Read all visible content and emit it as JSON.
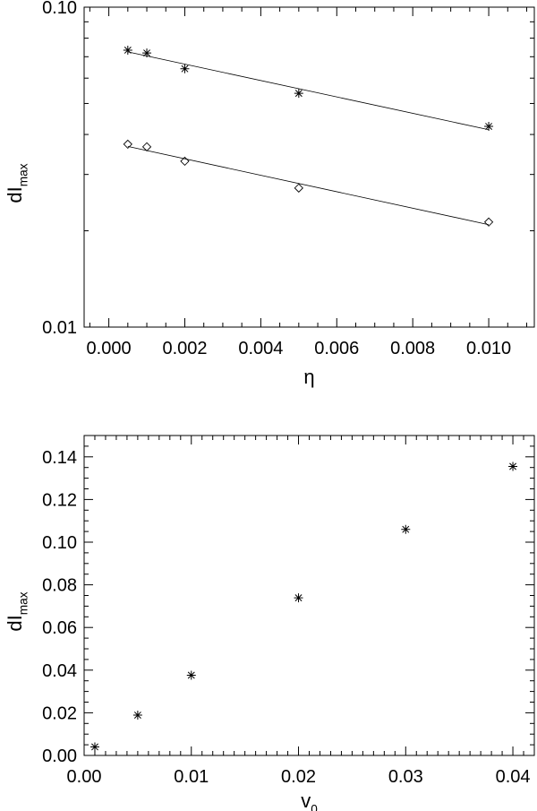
{
  "chart_data": [
    {
      "type": "scatter",
      "xlabel": "η",
      "ylabel": {
        "main": "dI",
        "sub": "max"
      },
      "xlim": [
        -0.00065,
        0.0112
      ],
      "ylim": [
        0.01,
        0.1
      ],
      "yscale": "log",
      "xticks": [
        "0.000",
        "0.002",
        "0.004",
        "0.006",
        "0.008",
        "0.010"
      ],
      "yticks": [
        "0.01",
        "0.10"
      ],
      "grid": false,
      "series": [
        {
          "marker": "asterisk",
          "x": [
            0.0005,
            0.001,
            0.002,
            0.005,
            0.01
          ],
          "y": [
            0.0734,
            0.0719,
            0.0642,
            0.0538,
            0.0424
          ],
          "fit": {
            "x": [
              0.0005,
              0.01
            ],
            "y": [
              0.0725,
              0.0414
            ]
          }
        },
        {
          "marker": "diamond",
          "x": [
            0.0005,
            0.001,
            0.002,
            0.005,
            0.01
          ],
          "y": [
            0.0373,
            0.0366,
            0.033,
            0.0272,
            0.0213
          ],
          "fit": {
            "x": [
              0.0005,
              0.01
            ],
            "y": [
              0.0367,
              0.0209
            ]
          }
        }
      ]
    },
    {
      "type": "scatter",
      "xlabel": {
        "main": "v",
        "sub": "0"
      },
      "ylabel": {
        "main": "dI",
        "sub": "max"
      },
      "xlim": [
        0,
        0.042
      ],
      "ylim": [
        0,
        0.15
      ],
      "xticks": [
        "0.00",
        "0.01",
        "0.02",
        "0.03",
        "0.04"
      ],
      "yticks": [
        "0.00",
        "0.02",
        "0.04",
        "0.06",
        "0.08",
        "0.10",
        "0.12",
        "0.14"
      ],
      "grid": false,
      "series": [
        {
          "marker": "asterisk",
          "x": [
            0.001,
            0.005,
            0.01,
            0.02,
            0.03,
            0.04
          ],
          "y": [
            0.004,
            0.0189,
            0.0376,
            0.0739,
            0.106,
            0.1355
          ]
        }
      ]
    }
  ]
}
